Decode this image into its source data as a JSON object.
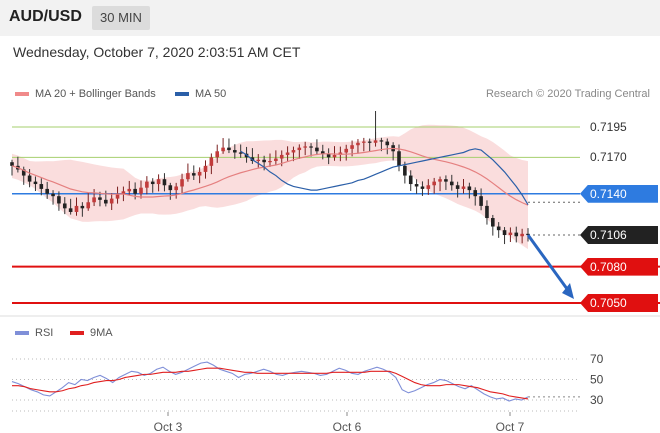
{
  "header": {
    "symbol": "AUD/USD",
    "interval": "30 MIN"
  },
  "datetime": "Wednesday, October 7, 2020 2:03:51 AM CET",
  "legend": {
    "ma20": {
      "label": "MA 20 + Bollinger Bands",
      "color": "#f08a8a"
    },
    "ma50": {
      "label": "MA 50",
      "color": "#2b5fa8"
    }
  },
  "credit": "Research © 2020 Trading Central",
  "rsi_legend": {
    "rsi": {
      "label": "RSI",
      "color": "#7f8fd8"
    },
    "ma9": {
      "label": "9MA",
      "color": "#e02020"
    }
  },
  "colors": {
    "resistance": "#a6cf6e",
    "pivot": "#2e7be0",
    "support": "#e01010",
    "current": "#333333",
    "arrow": "#2a66c0"
  },
  "chart_data": [
    {
      "type": "candlestick",
      "x_tick_labels": [
        "Oct 3",
        "Oct 6",
        "Oct 7"
      ],
      "ylim": [
        0.704,
        0.722
      ],
      "levels": [
        {
          "label": "0.7195",
          "value": 0.7195,
          "kind": "resistance"
        },
        {
          "label": "0.7170",
          "value": 0.717,
          "kind": "resistance"
        },
        {
          "label": "0.7140",
          "value": 0.714,
          "kind": "pivot"
        },
        {
          "label": "0.7106",
          "value": 0.7106,
          "kind": "current"
        },
        {
          "label": "0.7080",
          "value": 0.708,
          "kind": "support"
        },
        {
          "label": "0.7050",
          "value": 0.705,
          "kind": "support"
        }
      ],
      "close_series": [
        0.7163,
        0.716,
        0.7155,
        0.715,
        0.7148,
        0.7144,
        0.714,
        0.7138,
        0.7132,
        0.7128,
        0.7125,
        0.713,
        0.7128,
        0.7133,
        0.7137,
        0.7135,
        0.7132,
        0.7136,
        0.714,
        0.7142,
        0.7144,
        0.714,
        0.7145,
        0.715,
        0.7148,
        0.7152,
        0.7147,
        0.7143,
        0.7146,
        0.7152,
        0.7157,
        0.7155,
        0.7158,
        0.7163,
        0.717,
        0.7175,
        0.7178,
        0.7176,
        0.7174,
        0.7173,
        0.717,
        0.7167,
        0.7168,
        0.7166,
        0.7167,
        0.7169,
        0.7172,
        0.7174,
        0.7176,
        0.7178,
        0.7179,
        0.7178,
        0.7175,
        0.7173,
        0.717,
        0.7172,
        0.7174,
        0.7177,
        0.718,
        0.7182,
        0.7183,
        0.7182,
        0.7184,
        0.7183,
        0.718,
        0.7175,
        0.7163,
        0.7155,
        0.7148,
        0.7146,
        0.7144,
        0.7147,
        0.715,
        0.7152,
        0.715,
        0.7147,
        0.7144,
        0.7146,
        0.7143,
        0.7138,
        0.713,
        0.712,
        0.7113,
        0.711,
        0.7106,
        0.7108,
        0.7105,
        0.7107,
        0.7106
      ],
      "ma50": [
        0.7175,
        0.7172,
        0.7168,
        0.7165,
        0.7162,
        0.7158,
        0.7155,
        0.7151,
        0.7148,
        0.7146,
        0.7145,
        0.7144,
        0.7143,
        0.7143,
        0.7144,
        0.7145,
        0.7146,
        0.7147,
        0.7148,
        0.7149,
        0.7151,
        0.7152,
        0.7154,
        0.7156,
        0.7158,
        0.716,
        0.7162,
        0.7163,
        0.7164,
        0.7165,
        0.7166,
        0.7167,
        0.7168,
        0.7169,
        0.717,
        0.7171,
        0.7172,
        0.7173,
        0.7174,
        0.7176,
        0.7177,
        0.7176,
        0.7172,
        0.7168,
        0.7163,
        0.7158,
        0.7152,
        0.7146,
        0.7139,
        0.7131
      ],
      "ma50_start_index": 39
    },
    {
      "type": "line",
      "name": "RSI",
      "y_tick_labels": [
        "70",
        "50",
        "30"
      ],
      "ylim": [
        20,
        80
      ],
      "series": [
        {
          "name": "RSI",
          "values": [
            48,
            46,
            43,
            40,
            38,
            35,
            34,
            38,
            42,
            47,
            45,
            50,
            49,
            52,
            54,
            51,
            47,
            52,
            55,
            58,
            57,
            54,
            56,
            60,
            62,
            58,
            55,
            57,
            60,
            63,
            66,
            67,
            64,
            60,
            58,
            56,
            52,
            55,
            56,
            58,
            60,
            58,
            55,
            54,
            56,
            57,
            58,
            57,
            56,
            54,
            55,
            58,
            61,
            59,
            56,
            55,
            58,
            60,
            62,
            60,
            57,
            52,
            40,
            37,
            39,
            42,
            45,
            47,
            50,
            49,
            46,
            43,
            41,
            44,
            40,
            36,
            33,
            31,
            32,
            29,
            31,
            30,
            33
          ]
        },
        {
          "name": "9MA",
          "values": [
            44,
            44,
            43,
            41,
            40,
            39,
            38,
            38,
            39,
            41,
            42,
            44,
            45,
            47,
            48,
            49,
            49,
            50,
            52,
            53,
            54,
            55,
            55,
            56,
            57,
            57,
            57,
            58,
            58,
            59,
            60,
            61,
            61,
            61,
            60,
            59,
            58,
            57,
            57,
            56,
            56,
            56,
            56,
            56,
            56,
            56,
            56,
            56,
            56,
            56,
            56,
            57,
            57,
            57,
            57,
            57,
            57,
            58,
            58,
            58,
            58,
            56,
            53,
            50,
            47,
            45,
            44,
            44,
            44,
            45,
            45,
            45,
            44,
            43,
            42,
            40,
            38,
            37,
            36,
            34,
            33,
            32,
            31
          ]
        }
      ]
    }
  ]
}
